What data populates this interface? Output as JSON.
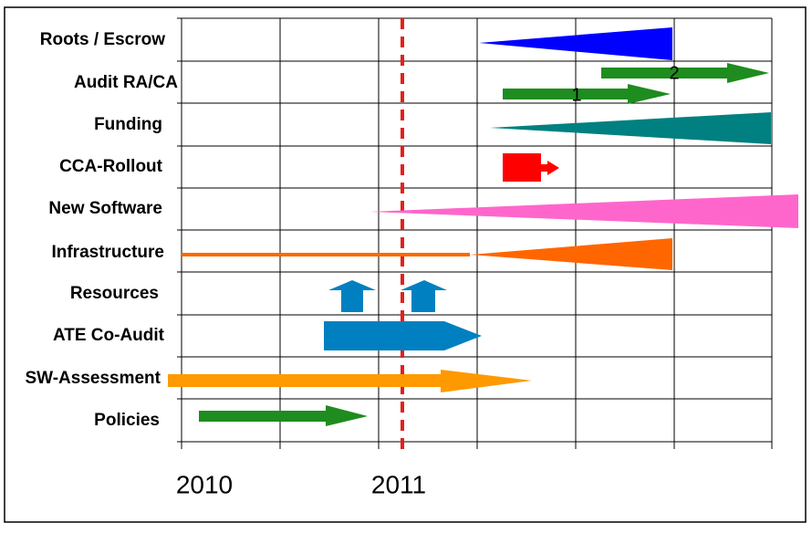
{
  "rows": [
    "Roots / Escrow",
    "Audit RA/CA",
    "Funding",
    "CCA-Rollout",
    "New Software",
    "Infrastructure",
    "Resources",
    "ATE Co-Audit",
    "SW-Assessment",
    "Policies"
  ],
  "years": [
    "2010",
    "2011"
  ],
  "arrow_labels": [
    "1",
    "2"
  ]
}
